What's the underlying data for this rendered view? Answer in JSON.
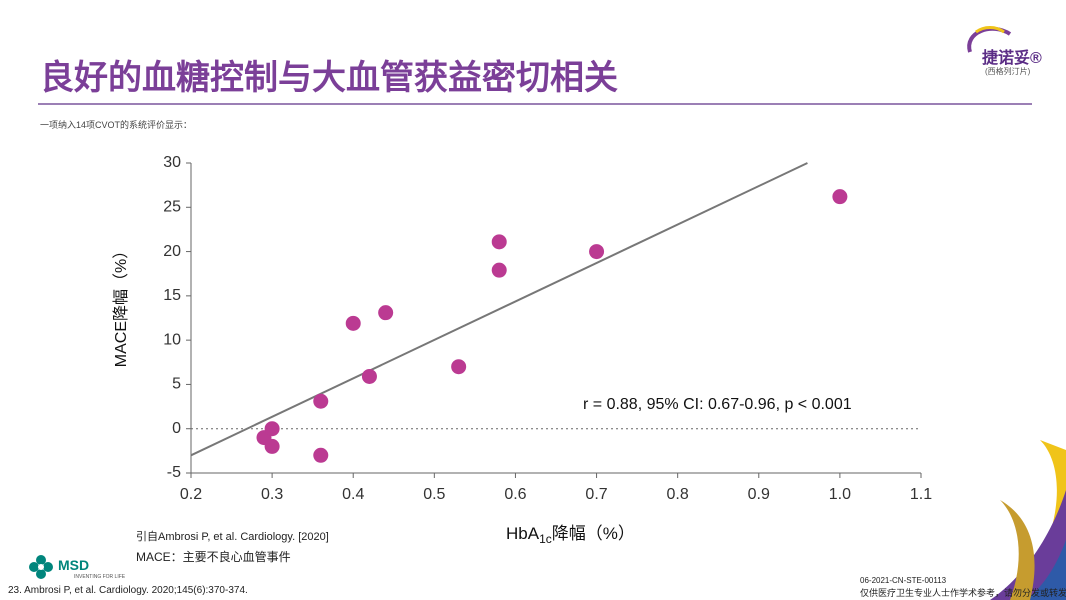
{
  "header": {
    "title": "良好的血糖控制与大血管获益密切相关",
    "subtitle": "一项纳入14项CVOT的系统评价显示：",
    "brand": "捷诺妥®",
    "brand_sub": "(西格列汀片)"
  },
  "chart_data": {
    "type": "scatter",
    "x_label": {
      "main": "HbA",
      "sub": "1c",
      "suffix": "降幅（%）"
    },
    "y_label": "MACE降幅（%）",
    "annotation": "r = 0.88, 95% CI: 0.67-0.96, p < 0.001",
    "series": [
      {
        "color": "#bb3a92",
        "x": [
          0.29,
          0.3,
          0.3,
          0.36,
          0.36,
          0.4,
          0.42,
          0.44,
          0.53,
          0.58,
          0.58,
          0.7,
          1
        ],
        "values": [
          -1,
          0,
          -2,
          3.1,
          -3,
          11.9,
          5.9,
          13.1,
          7,
          21.1,
          17.9,
          20,
          26.2
        ]
      }
    ],
    "trendline": {
      "color": "#777777",
      "x": [
        0.2,
        0.96
      ],
      "y": [
        -3,
        30
      ]
    },
    "reference_line": 0,
    "xlim": [
      0.2,
      1.1
    ],
    "xticks": [
      0.2,
      0.3,
      0.4,
      0.5,
      0.6,
      0.7,
      0.8,
      0.9,
      {
        "value": 1,
        "label": "1.0"
      },
      1.1
    ],
    "ylim": [
      -5,
      30
    ],
    "yticks": [
      -5,
      0,
      5,
      10,
      15,
      20,
      25,
      30
    ]
  },
  "footer": {
    "source": "引自Ambrosi P, et al. Cardiology. [2020]",
    "abbrev": "MACE：主要不良心血管事件",
    "reference": "23. Ambrosi P, et al. Cardiology. 2020;145(6):370-374.",
    "code": "06-2021-CN-STE-00113",
    "disclaimer": "仅供医疗卫生专业人士作学术参考，请勿分发或转发",
    "company": "MSD",
    "tagline": "INVENTING FOR LIFE"
  }
}
